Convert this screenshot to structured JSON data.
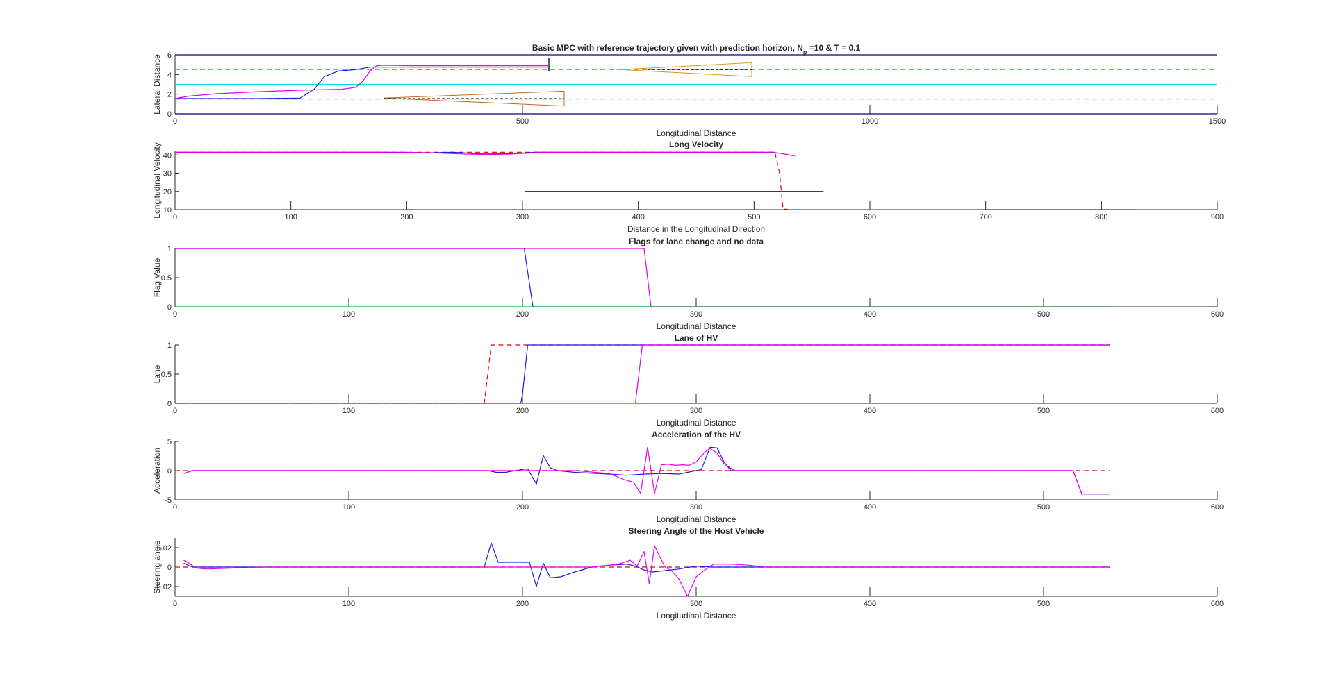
{
  "figure": {
    "background": "#ffffff",
    "axis_color": "#262626"
  },
  "chart_data": [
    {
      "type": "line",
      "title": "Basic MPC with reference trajectory given with prediction horizon, N",
      "title_sub": "p",
      "title_rest": " =10 & T = 0.1",
      "xlabel": "Longitudinal Distance",
      "ylabel": "Lateral Distance",
      "xlim": [
        0,
        1500
      ],
      "ylim": [
        0,
        6
      ],
      "xticks": [
        0,
        500,
        1000,
        1500
      ],
      "yticks": [
        0,
        2,
        4,
        6
      ],
      "series": [
        {
          "color": "#00008b",
          "width": 1.2,
          "dash": "",
          "x": [
            0,
            1500
          ],
          "y": [
            6,
            6
          ]
        },
        {
          "color": "#00008b",
          "width": 1.2,
          "dash": "",
          "x": [
            0,
            1500
          ],
          "y": [
            0,
            0
          ]
        },
        {
          "color": "#00dcdc",
          "width": 1,
          "dash": "",
          "x": [
            0,
            1500
          ],
          "y": [
            3,
            3
          ]
        },
        {
          "color": "#22b822",
          "width": 1,
          "dash": "7,5",
          "x": [
            0,
            1500
          ],
          "y": [
            4.5,
            4.5
          ]
        },
        {
          "color": "#22b822",
          "width": 1,
          "dash": "7,5",
          "x": [
            0,
            1500
          ],
          "y": [
            1.5,
            1.5
          ]
        },
        {
          "color": "#1a1ae6",
          "width": 1.2,
          "dash": "",
          "x": [
            0,
            60,
            120,
            180,
            200,
            215,
            235,
            260,
            280,
            300,
            340,
            400,
            450,
            500,
            540
          ],
          "y": [
            1.55,
            1.55,
            1.55,
            1.6,
            2.5,
            3.8,
            4.35,
            4.5,
            4.75,
            4.75,
            4.75,
            4.75,
            4.75,
            4.75,
            4.75
          ]
        },
        {
          "color": "#e600e6",
          "width": 1.2,
          "dash": "",
          "x": [
            0,
            20,
            60,
            120,
            180,
            240,
            260,
            270,
            280,
            290,
            300,
            340,
            400,
            450,
            500,
            540
          ],
          "y": [
            1.55,
            1.8,
            2.05,
            2.25,
            2.4,
            2.5,
            2.7,
            3.3,
            4.3,
            4.9,
            4.95,
            4.9,
            4.9,
            4.9,
            4.9,
            4.9
          ]
        },
        {
          "color": "#c8641e",
          "width": 1,
          "dash": "",
          "x": [
            300,
            560,
            560,
            300
          ],
          "y": [
            1.6,
            2.3,
            0.8,
            1.6
          ]
        },
        {
          "color": "#000000",
          "width": 1,
          "dash": "4,3",
          "x": [
            300,
            560
          ],
          "y": [
            1.55,
            1.55
          ]
        },
        {
          "color": "#d4a020",
          "width": 1,
          "dash": "",
          "x": [
            640,
            830,
            830,
            640
          ],
          "y": [
            4.5,
            5.2,
            3.8,
            4.5
          ]
        },
        {
          "color": "#000000",
          "width": 1,
          "dash": "4,3",
          "x": [
            680,
            830
          ],
          "y": [
            4.5,
            4.5
          ]
        },
        {
          "color": "#555555",
          "width": 2,
          "dash": "",
          "x": [
            538,
            538
          ],
          "y": [
            4.3,
            5.7
          ]
        }
      ]
    },
    {
      "type": "line",
      "title": "Long Velocity",
      "xlabel": "Distance in the Longitudinal Direction",
      "ylabel": "Longitudinal Velocity",
      "xlim": [
        0,
        900
      ],
      "ylim": [
        10,
        42
      ],
      "xticks": [
        0,
        100,
        200,
        300,
        400,
        500,
        600,
        700,
        800,
        900
      ],
      "yticks": [
        10,
        20,
        30,
        40
      ],
      "series": [
        {
          "color": "#e60000",
          "width": 1.2,
          "dash": "7,5",
          "x": [
            0,
            518,
            522,
            525,
            530,
            535
          ],
          "y": [
            41.5,
            41.5,
            30,
            10.5,
            10,
            10
          ]
        },
        {
          "color": "#1a1ae6",
          "width": 1.2,
          "dash": "",
          "x": [
            0,
            180,
            220,
            240,
            260,
            280,
            300,
            310,
            320,
            400,
            500,
            518
          ],
          "y": [
            41.5,
            41.5,
            41.2,
            41.5,
            40.8,
            40.8,
            41.0,
            41.5,
            41.5,
            41.5,
            41.5,
            41.5
          ]
        },
        {
          "color": "#e600e6",
          "width": 1.2,
          "dash": "",
          "x": [
            0,
            200,
            230,
            250,
            270,
            290,
            305,
            315,
            400,
            500,
            520,
            535
          ],
          "y": [
            41.5,
            41.5,
            41.0,
            40.5,
            40.2,
            40.5,
            41.0,
            41.5,
            41.5,
            41.5,
            41.2,
            39.5
          ]
        },
        {
          "color": "#000000",
          "width": 1,
          "dash": "",
          "x": [
            302,
            560
          ],
          "y": [
            20,
            20
          ]
        },
        {
          "color": "#000000",
          "width": 1,
          "dash": "",
          "x": [
            700,
            830
          ],
          "y": [
            10,
            10
          ]
        }
      ]
    },
    {
      "type": "line",
      "title": "Flags for lane change and no data",
      "xlabel": "Longitudinal Distance",
      "ylabel": "Flag Value",
      "xlim": [
        0,
        600
      ],
      "ylim": [
        0,
        1
      ],
      "xticks": [
        0,
        100,
        200,
        300,
        400,
        500,
        600
      ],
      "yticks": [
        0,
        0.5,
        1
      ],
      "series": [
        {
          "color": "#1a1ae6",
          "width": 1.2,
          "dash": "",
          "x": [
            0,
            201,
            206,
            538
          ],
          "y": [
            1,
            1,
            0,
            0
          ]
        },
        {
          "color": "#e600e6",
          "width": 1.2,
          "dash": "",
          "x": [
            0,
            270,
            274,
            538
          ],
          "y": [
            1,
            1,
            0,
            0
          ]
        },
        {
          "color": "#22b822",
          "width": 1.2,
          "dash": "",
          "x": [
            0,
            538
          ],
          "y": [
            0,
            0
          ]
        }
      ]
    },
    {
      "type": "line",
      "title": "Lane of HV",
      "xlabel": "Longitudinal Distance",
      "ylabel": "Lane",
      "xlim": [
        0,
        600
      ],
      "ylim": [
        0,
        1
      ],
      "xticks": [
        0,
        100,
        200,
        300,
        400,
        500,
        600
      ],
      "yticks": [
        0,
        0.5,
        1
      ],
      "series": [
        {
          "color": "#e60000",
          "width": 1.2,
          "dash": "7,5",
          "x": [
            0,
            178,
            182,
            538
          ],
          "y": [
            0,
            0,
            1,
            1
          ]
        },
        {
          "color": "#1a1ae6",
          "width": 1.2,
          "dash": "",
          "x": [
            0,
            199,
            200,
            203,
            538
          ],
          "y": [
            0,
            0,
            0.15,
            1,
            1
          ]
        },
        {
          "color": "#e600e6",
          "width": 1.2,
          "dash": "",
          "x": [
            0,
            265,
            269,
            538
          ],
          "y": [
            0,
            0,
            1,
            1
          ]
        }
      ]
    },
    {
      "type": "line",
      "title": "Acceleration of the HV",
      "xlabel": "Longitudinal Distance",
      "ylabel": "Acceleration",
      "xlim": [
        0,
        600
      ],
      "ylim": [
        -5,
        5
      ],
      "xticks": [
        0,
        100,
        200,
        300,
        400,
        500,
        600
      ],
      "yticks": [
        -5,
        0,
        5
      ],
      "series": [
        {
          "color": "#e60000",
          "width": 1.2,
          "dash": "7,5",
          "x": [
            0,
            538
          ],
          "y": [
            0,
            0
          ]
        },
        {
          "color": "#1a1ae6",
          "width": 1.2,
          "dash": "",
          "x": [
            5,
            10,
            180,
            185,
            190,
            200,
            203,
            208,
            212,
            216,
            220,
            230,
            250,
            260,
            270,
            280,
            290,
            300,
            303,
            308,
            312,
            316,
            320,
            340,
            500,
            517,
            522,
            538
          ],
          "y": [
            -0.5,
            0,
            0,
            -0.3,
            -0.3,
            0.2,
            0.3,
            -2.3,
            2.6,
            0.5,
            0,
            -0.3,
            -0.6,
            -0.8,
            -0.6,
            -0.5,
            -0.6,
            0,
            0.2,
            4,
            3.9,
            1.5,
            0,
            0,
            0,
            0,
            -4,
            -4
          ]
        },
        {
          "color": "#e600e6",
          "width": 1.2,
          "dash": "",
          "x": [
            5,
            10,
            180,
            210,
            230,
            250,
            258,
            264,
            268,
            272,
            276,
            280,
            284,
            288,
            292,
            296,
            300,
            305,
            308,
            312,
            316,
            322,
            340,
            517,
            522,
            538
          ],
          "y": [
            -0.5,
            0,
            0,
            0,
            0,
            -0.5,
            -1.5,
            -2.0,
            -3.9,
            4.0,
            -3.9,
            1.0,
            1.1,
            0.9,
            1.0,
            0.9,
            1.5,
            3.2,
            3.8,
            3.0,
            1.2,
            0,
            0,
            0,
            -4,
            -4
          ]
        }
      ]
    },
    {
      "type": "line",
      "title": "Steering Angle of the Host Vehicle",
      "xlabel": "Longitudinal Distance",
      "ylabel": "Steering angle",
      "xlim": [
        0,
        600
      ],
      "ylim": [
        -0.03,
        0.03
      ],
      "xticks": [
        0,
        100,
        200,
        300,
        400,
        500,
        600
      ],
      "yticks": [
        -0.02,
        0,
        0.02
      ],
      "series": [
        {
          "color": "#e60000",
          "width": 1.2,
          "dash": "7,5",
          "x": [
            0,
            538
          ],
          "y": [
            0,
            0
          ]
        },
        {
          "color": "#1a1ae6",
          "width": 1.2,
          "dash": "",
          "x": [
            5,
            10,
            15,
            50,
            178,
            182,
            186,
            200,
            204,
            208,
            212,
            216,
            222,
            230,
            240,
            250,
            260,
            265,
            270,
            275,
            280,
            290,
            300,
            310,
            320,
            330,
            340,
            538
          ],
          "y": [
            0.004,
            0,
            0,
            0,
            0,
            0.025,
            0.005,
            0.005,
            0.005,
            -0.02,
            0.004,
            -0.011,
            -0.01,
            -0.005,
            0,
            0.002,
            0.003,
            0.001,
            -0.003,
            -0.005,
            -0.004,
            -0.002,
            0.001,
            0,
            0,
            0,
            0,
            0
          ]
        },
        {
          "color": "#e600e6",
          "width": 1.2,
          "dash": "",
          "x": [
            5,
            8,
            12,
            18,
            50,
            200,
            240,
            255,
            262,
            266,
            270,
            273,
            276,
            279,
            282,
            286,
            290,
            295,
            300,
            305,
            310,
            320,
            330,
            340,
            538
          ],
          "y": [
            0.007,
            0.004,
            -0.001,
            -0.002,
            0,
            0,
            0,
            0.003,
            0.007,
            0.001,
            0.016,
            -0.017,
            0.022,
            0.011,
            0,
            -0.004,
            -0.012,
            -0.03,
            -0.01,
            -0.003,
            0.003,
            0.003,
            0.002,
            0,
            0
          ]
        }
      ]
    }
  ]
}
